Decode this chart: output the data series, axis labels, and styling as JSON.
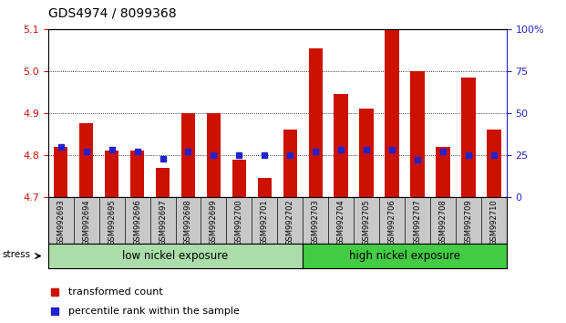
{
  "title": "GDS4974 / 8099368",
  "samples": [
    "GSM992693",
    "GSM992694",
    "GSM992695",
    "GSM992696",
    "GSM992697",
    "GSM992698",
    "GSM992699",
    "GSM992700",
    "GSM992701",
    "GSM992702",
    "GSM992703",
    "GSM992704",
    "GSM992705",
    "GSM992706",
    "GSM992707",
    "GSM992708",
    "GSM992709",
    "GSM992710"
  ],
  "transformed_count": [
    4.82,
    4.875,
    4.81,
    4.81,
    4.77,
    4.9,
    4.9,
    4.79,
    4.745,
    4.86,
    5.055,
    4.945,
    4.91,
    5.1,
    5.0,
    4.82,
    4.985,
    4.86
  ],
  "percentile_rank": [
    30,
    27,
    28,
    27,
    23,
    27,
    25,
    25,
    25,
    25,
    27,
    28,
    28,
    28,
    22,
    27,
    25,
    25
  ],
  "y_min": 4.7,
  "y_max": 5.1,
  "y_ticks": [
    4.7,
    4.8,
    4.9,
    5.0,
    5.1
  ],
  "right_y_ticks": [
    0,
    25,
    50,
    75,
    100
  ],
  "right_y_labels": [
    "0",
    "25",
    "50",
    "75",
    "100%"
  ],
  "bar_color": "#cc1100",
  "blue_color": "#2222cc",
  "background_xticklabels": "#c8c8c8",
  "low_nickel_color": "#aaddaa",
  "high_nickel_color": "#44cc44",
  "low_nickel_label": "low nickel exposure",
  "high_nickel_label": "high nickel exposure",
  "stress_label": "stress",
  "legend_red": "transformed count",
  "legend_blue": "percentile rank within the sample",
  "n_low": 10,
  "n_high": 8
}
